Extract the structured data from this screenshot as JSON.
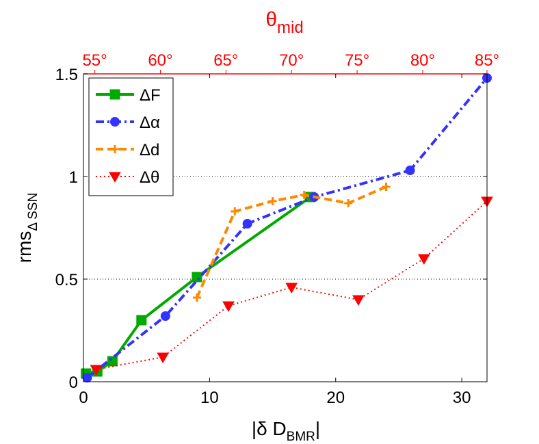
{
  "chart_data": {
    "type": "line",
    "xlim": [
      0,
      32
    ],
    "ylim": [
      0,
      1.5
    ],
    "x_ticks": [
      0,
      10,
      20,
      30
    ],
    "x_tick_labels": [
      "0",
      "10",
      "20",
      "30"
    ],
    "y_ticks": [
      0,
      0.5,
      1,
      1.5
    ],
    "y_tick_labels": [
      "0",
      "0.5",
      "1",
      "1.5"
    ],
    "gridlines_y": [
      0.5,
      1
    ],
    "xlabel": {
      "main": "|δ D",
      "sub": "BMR",
      "tail": "|"
    },
    "ylabel": {
      "main": "rms",
      "sub": "Δ SSN"
    },
    "top_axis": {
      "label": {
        "main": "θ",
        "sub": "mid"
      },
      "color": "#ff0000",
      "ticks": [
        {
          "label": "55°",
          "x": 0.9
        },
        {
          "label": "60°",
          "x": 6.1
        },
        {
          "label": "65°",
          "x": 11.3
        },
        {
          "label": "70°",
          "x": 16.5
        },
        {
          "label": "75°",
          "x": 21.7
        },
        {
          "label": "80°",
          "x": 26.9
        },
        {
          "label": "85°",
          "x": 32.0
        }
      ]
    },
    "legend_position": "top-left",
    "series": [
      {
        "name": "ΔF",
        "color": "#00aa00",
        "dash": "solid",
        "marker": "square",
        "x": [
          0.2,
          1.1,
          2.3,
          4.6,
          9.0,
          18.0
        ],
        "y": [
          0.04,
          0.05,
          0.1,
          0.3,
          0.51,
          0.9
        ]
      },
      {
        "name": "Δα",
        "color": "#3333ff",
        "dash": "dashdot",
        "marker": "circle",
        "x": [
          0.3,
          6.5,
          13.0,
          18.3,
          25.9,
          32.0
        ],
        "y": [
          0.02,
          0.32,
          0.77,
          0.9,
          1.03,
          1.48
        ]
      },
      {
        "name": "Δd",
        "color": "#ff8800",
        "dash": "dashed",
        "marker": "plus",
        "x": [
          9.0,
          12.0,
          15.0,
          17.5,
          21.0,
          24.0
        ],
        "y": [
          0.41,
          0.83,
          0.88,
          0.91,
          0.87,
          0.95
        ]
      },
      {
        "name": "Δθ",
        "color": "#ff0000",
        "dash": "dotted",
        "marker": "triangle-down",
        "x": [
          1.0,
          6.3,
          11.5,
          16.5,
          21.8,
          27.0,
          32.0
        ],
        "y": [
          0.06,
          0.12,
          0.37,
          0.46,
          0.4,
          0.6,
          0.88
        ]
      }
    ]
  }
}
